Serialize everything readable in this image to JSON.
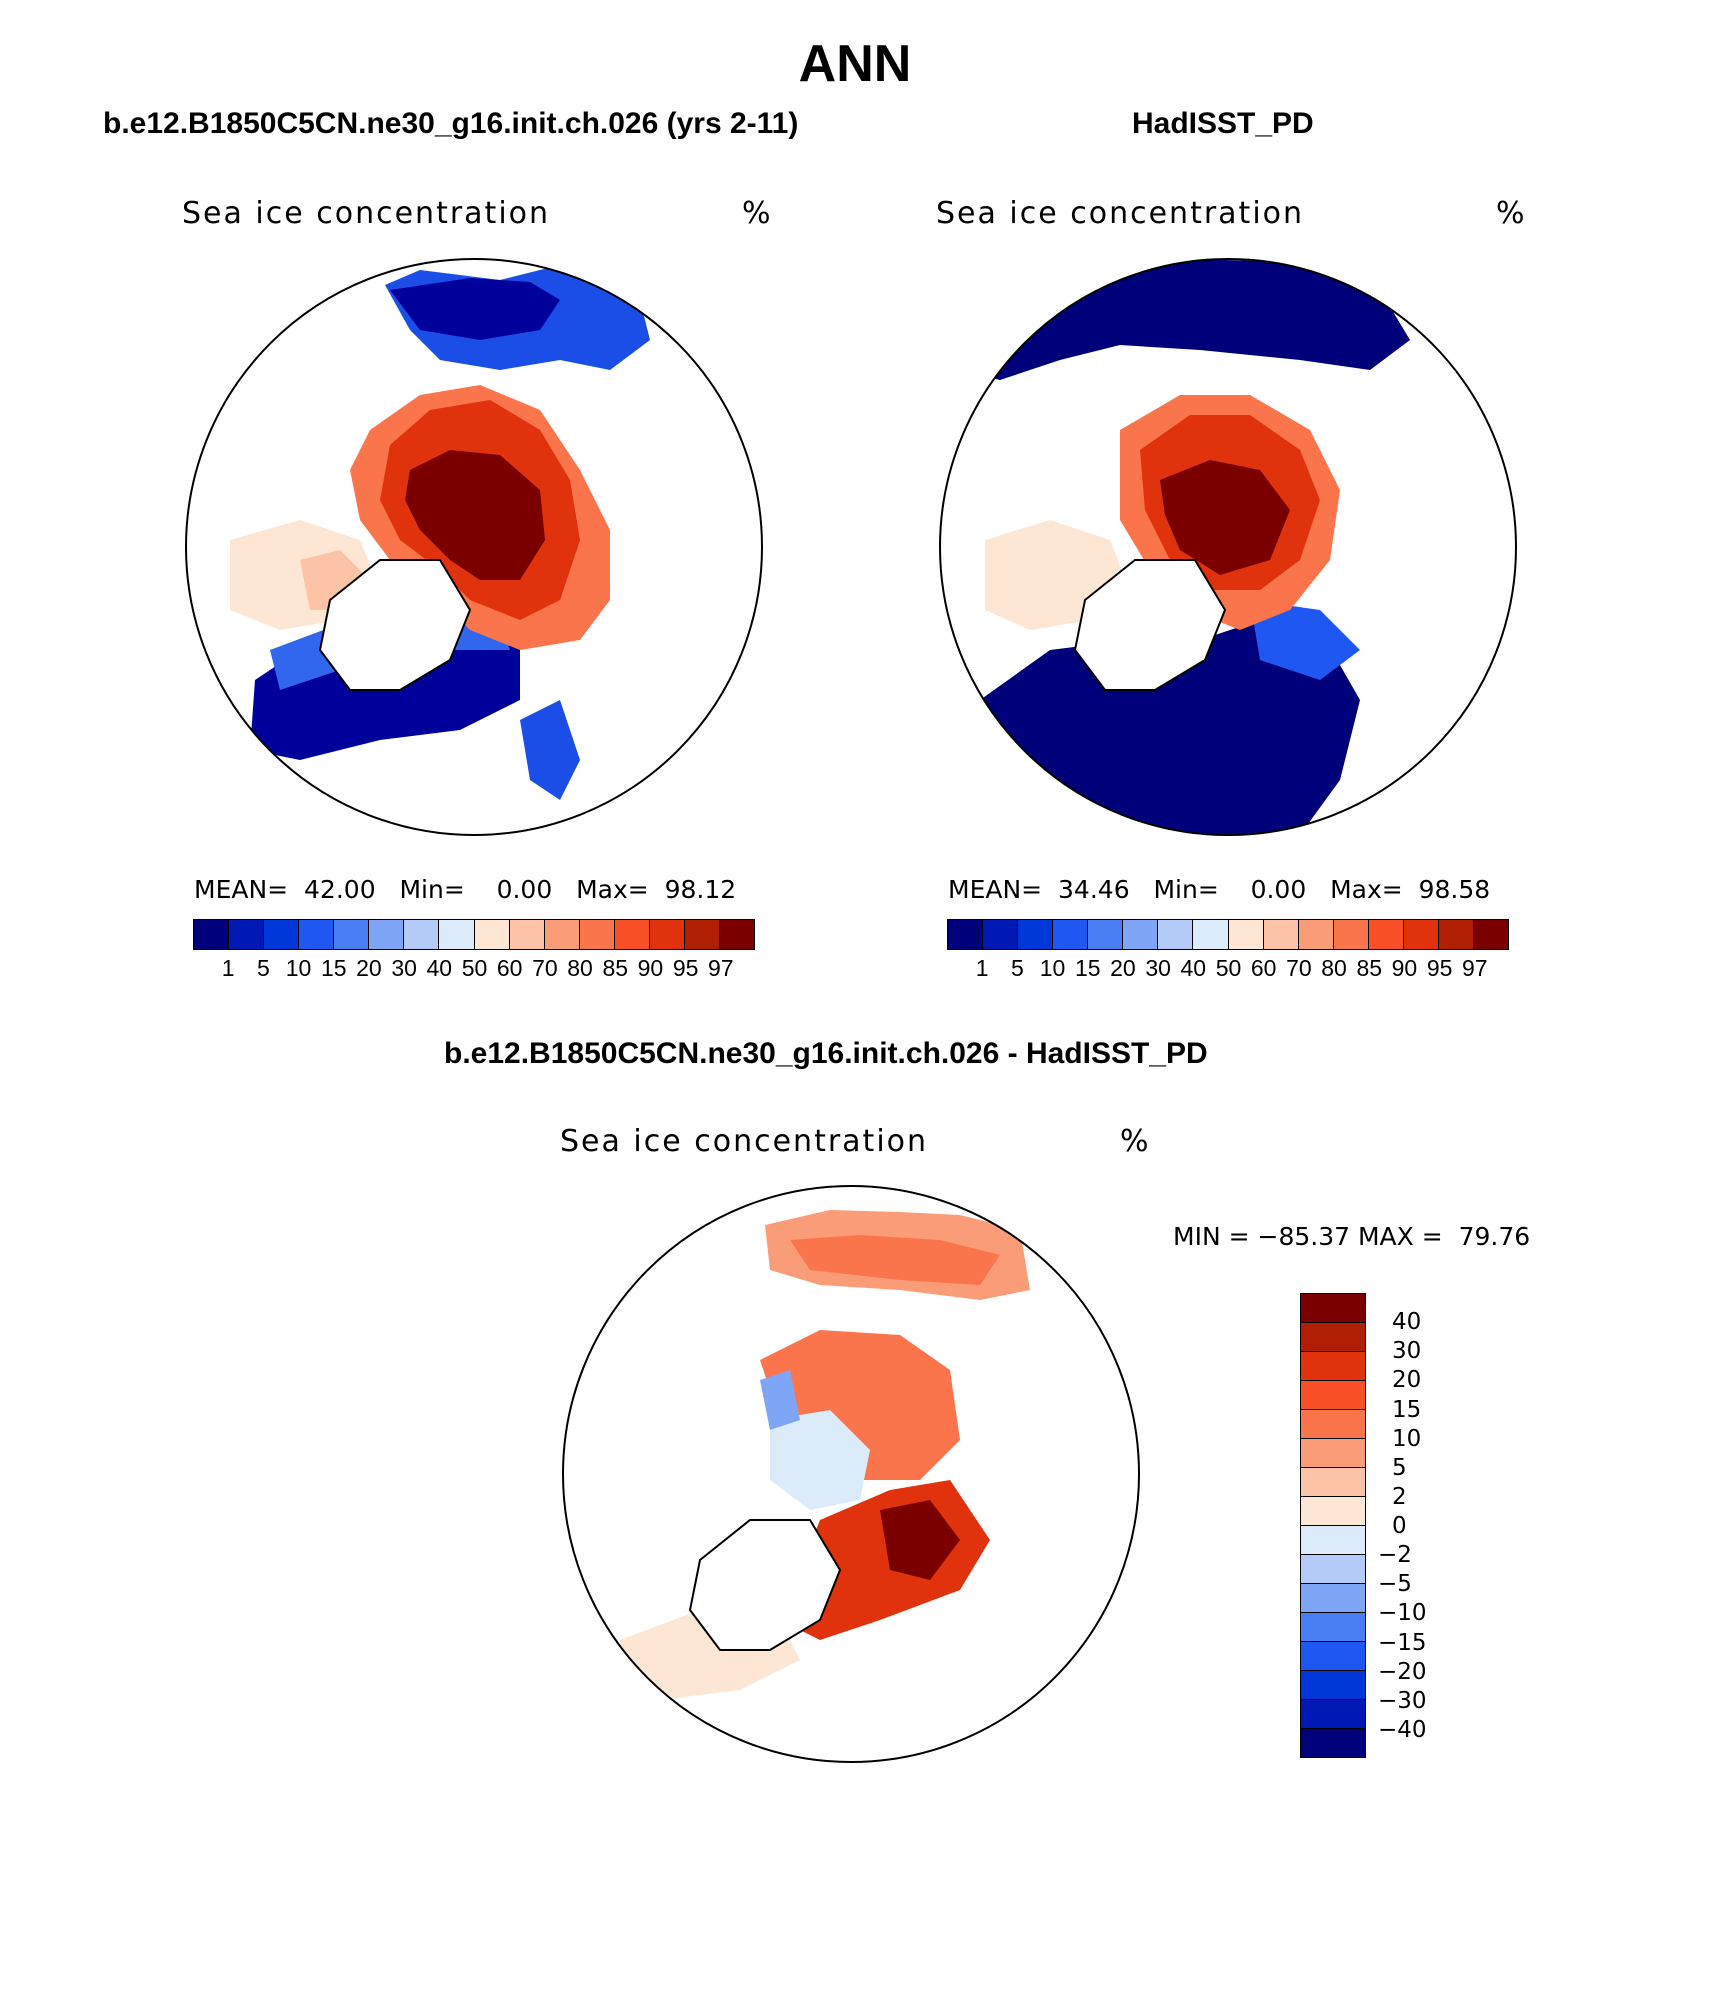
{
  "page": {
    "title": "ANN",
    "panel_left_title": "b.e12.B1850C5CN.ne30_g16.init.ch.026 (yrs 2-11)",
    "panel_right_title": "HadISST_PD",
    "panel_diff_title": "b.e12.B1850C5CN.ne30_g16.init.ch.026 - HadISST_PD",
    "variable_label": "Sea ice concentration",
    "unit_label": "%"
  },
  "panels": {
    "left": {
      "mean_label": "MEAN=",
      "mean": "42.00",
      "min_label": "Min=",
      "min": "0.00",
      "max_label": "Max=",
      "max": "98.12"
    },
    "right": {
      "mean_label": "MEAN=",
      "mean": "34.46",
      "min_label": "Min=",
      "min": "0.00",
      "max_label": "Max=",
      "max": "98.58"
    },
    "diff": {
      "min_label": "MIN =",
      "min": "−85.37",
      "max_label": "MAX =",
      "max": "79.76"
    }
  },
  "colorbars": {
    "concentration": {
      "colors": [
        "#00007a",
        "#0018b4",
        "#0037d8",
        "#1f57f2",
        "#4a7ef5",
        "#7fa6f6",
        "#b5cbf7",
        "#dcebfa",
        "#fde6d4",
        "#fcc3a6",
        "#fb9c79",
        "#fa744c",
        "#f84f26",
        "#e0320c",
        "#b01e04",
        "#7a0000"
      ],
      "labels": [
        "1",
        "5",
        "10",
        "15",
        "20",
        "30",
        "40",
        "50",
        "60",
        "70",
        "80",
        "85",
        "90",
        "95",
        "97"
      ]
    },
    "difference": {
      "colors_top_to_bottom": [
        "#7a0000",
        "#b01e04",
        "#e0320c",
        "#f84f26",
        "#fa744c",
        "#fb9c79",
        "#fcc3a6",
        "#fde6d4",
        "#dcebfa",
        "#b5cbf7",
        "#7fa6f6",
        "#4a7ef5",
        "#1f57f2",
        "#0037d8",
        "#0018b4",
        "#00007a"
      ],
      "labels_top_to_bottom": [
        "40",
        "30",
        "20",
        "15",
        "10",
        "5",
        "2",
        "0",
        "−2",
        "−5",
        "−10",
        "−15",
        "−20",
        "−30",
        "−40"
      ]
    }
  },
  "chart_data": {
    "type": "heatmap",
    "projection": "north polar stereographic",
    "maps": [
      {
        "name": "b.e12.B1850C5CN.ne30_g16.init.ch.026 (yrs 2-11)",
        "variable": "Sea ice concentration",
        "units": "%",
        "mean": 42.0,
        "min": 0.0,
        "max": 98.12,
        "levels": [
          1,
          5,
          10,
          15,
          20,
          30,
          40,
          50,
          60,
          70,
          80,
          85,
          90,
          95,
          97
        ]
      },
      {
        "name": "HadISST_PD",
        "variable": "Sea ice concentration",
        "units": "%",
        "mean": 34.46,
        "min": 0.0,
        "max": 98.58,
        "levels": [
          1,
          5,
          10,
          15,
          20,
          30,
          40,
          50,
          60,
          70,
          80,
          85,
          90,
          95,
          97
        ]
      },
      {
        "name": "b.e12.B1850C5CN.ne30_g16.init.ch.026 - HadISST_PD",
        "variable": "Sea ice concentration",
        "units": "%",
        "min": -85.37,
        "max": 79.76,
        "levels": [
          -40,
          -30,
          -20,
          -15,
          -10,
          -5,
          -2,
          0,
          2,
          5,
          10,
          15,
          20,
          30,
          40
        ]
      }
    ]
  }
}
